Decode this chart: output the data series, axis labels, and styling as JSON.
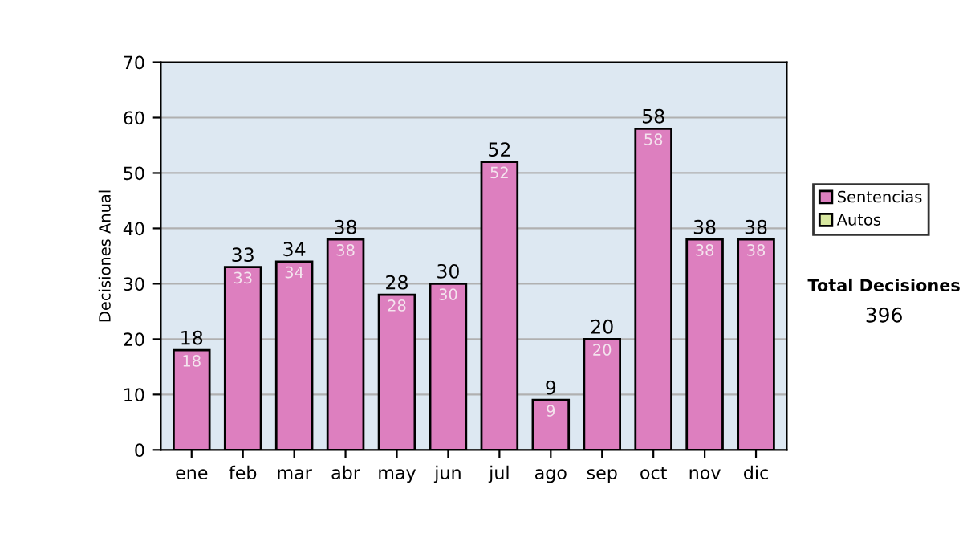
{
  "chart_data": {
    "type": "bar",
    "ylabel": "Decisiones Anual",
    "categories": [
      "ene",
      "feb",
      "mar",
      "abr",
      "may",
      "jun",
      "jul",
      "ago",
      "sep",
      "oct",
      "nov",
      "dic"
    ],
    "series": [
      {
        "name": "Sentencias",
        "color": "#dd7fbf",
        "values": [
          18,
          33,
          34,
          38,
          28,
          30,
          52,
          9,
          20,
          58,
          38,
          38
        ],
        "value_labels": [
          "18",
          "33",
          "34",
          "38",
          "28",
          "30",
          "52",
          "9",
          "20",
          "58",
          "38",
          "38"
        ]
      },
      {
        "name": "Autos",
        "color": "#d8e8a0",
        "values": [
          0,
          0,
          0,
          0,
          0,
          0,
          0,
          0,
          0,
          0,
          0,
          0
        ]
      }
    ],
    "stacked": true,
    "totals": [
      "18",
      "33",
      "34",
      "38",
      "28",
      "30",
      "52",
      "9",
      "20",
      "58",
      "38",
      "38"
    ],
    "ylim": [
      0,
      70
    ],
    "yticks": [
      0,
      10,
      20,
      30,
      40,
      50,
      60,
      70
    ],
    "grid": "y",
    "legend": "right",
    "annotations": [
      "Total Decisiones",
      "396"
    ]
  }
}
